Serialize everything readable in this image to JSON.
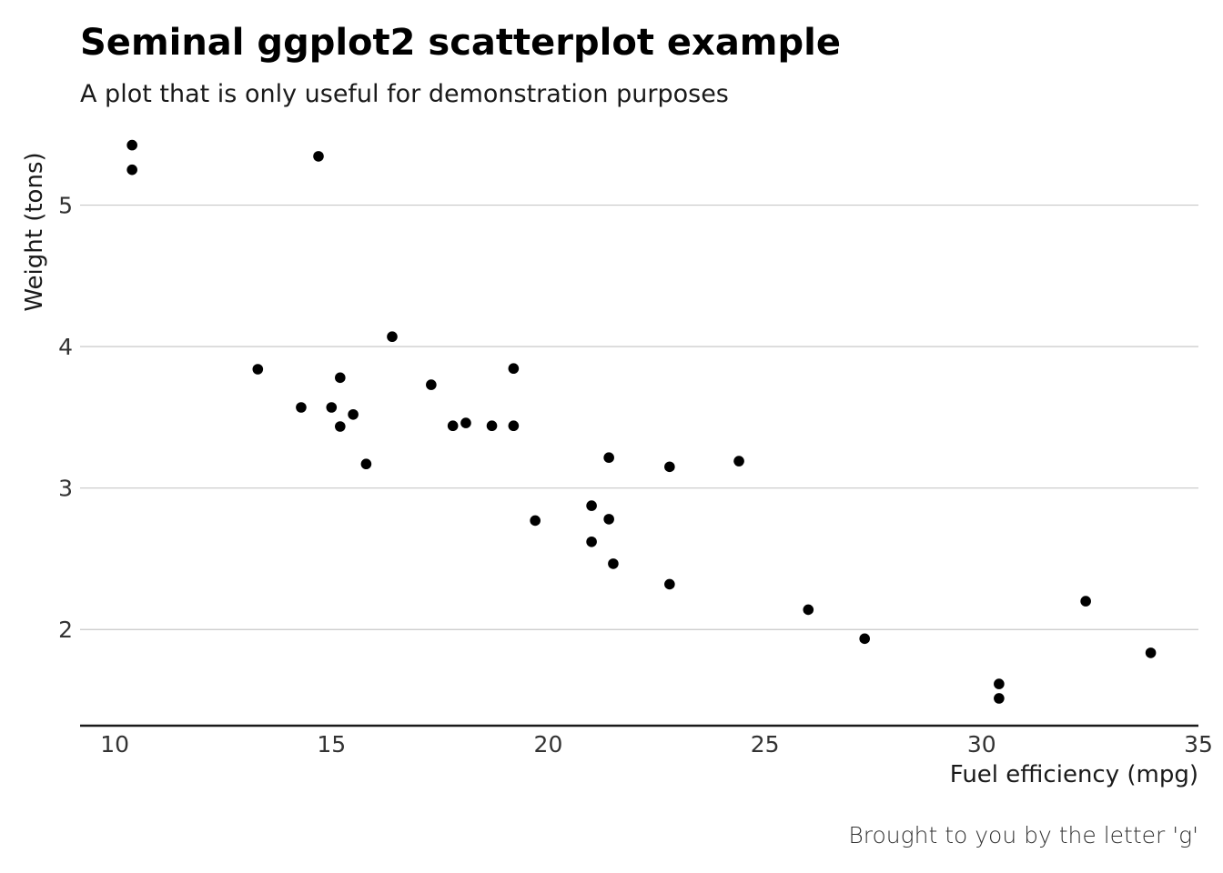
{
  "chart_data": {
    "type": "scatter",
    "title": "Seminal ggplot2 scatterplot example",
    "subtitle": "A plot that is only useful for demonstration purposes",
    "xlabel": "Fuel efficiency (mpg)",
    "ylabel": "Weight (tons)",
    "caption": "Brought to you by the letter 'g'",
    "xlim": [
      9.2,
      35
    ],
    "ylim": [
      1.32,
      5.55
    ],
    "x_ticks": [
      10,
      15,
      20,
      25,
      30,
      35
    ],
    "y_ticks": [
      2,
      3,
      4,
      5
    ],
    "x_tick_labels": [
      "10",
      "15",
      "20",
      "25",
      "30",
      "35"
    ],
    "y_tick_labels": [
      "2",
      "3",
      "4",
      "5"
    ],
    "grid": "horizontal major only",
    "point_color": "#000000",
    "gridline_color": "#c8c8c8",
    "points": [
      {
        "x": 21.0,
        "y": 2.62
      },
      {
        "x": 21.0,
        "y": 2.875
      },
      {
        "x": 22.8,
        "y": 2.32
      },
      {
        "x": 21.4,
        "y": 3.215
      },
      {
        "x": 18.7,
        "y": 3.44
      },
      {
        "x": 18.1,
        "y": 3.46
      },
      {
        "x": 14.3,
        "y": 3.57
      },
      {
        "x": 24.4,
        "y": 3.19
      },
      {
        "x": 22.8,
        "y": 3.15
      },
      {
        "x": 19.2,
        "y": 3.44
      },
      {
        "x": 17.8,
        "y": 3.44
      },
      {
        "x": 16.4,
        "y": 4.07
      },
      {
        "x": 17.3,
        "y": 3.73
      },
      {
        "x": 15.2,
        "y": 3.78
      },
      {
        "x": 10.4,
        "y": 5.25
      },
      {
        "x": 10.4,
        "y": 5.424
      },
      {
        "x": 14.7,
        "y": 5.345
      },
      {
        "x": 32.4,
        "y": 2.2
      },
      {
        "x": 30.4,
        "y": 1.615
      },
      {
        "x": 33.9,
        "y": 1.835
      },
      {
        "x": 21.5,
        "y": 2.465
      },
      {
        "x": 15.5,
        "y": 3.52
      },
      {
        "x": 15.2,
        "y": 3.435
      },
      {
        "x": 13.3,
        "y": 3.84
      },
      {
        "x": 19.2,
        "y": 3.845
      },
      {
        "x": 27.3,
        "y": 1.935
      },
      {
        "x": 26.0,
        "y": 2.14
      },
      {
        "x": 30.4,
        "y": 1.513
      },
      {
        "x": 15.8,
        "y": 3.17
      },
      {
        "x": 19.7,
        "y": 2.77
      },
      {
        "x": 15.0,
        "y": 3.57
      },
      {
        "x": 21.4,
        "y": 2.78
      }
    ]
  }
}
